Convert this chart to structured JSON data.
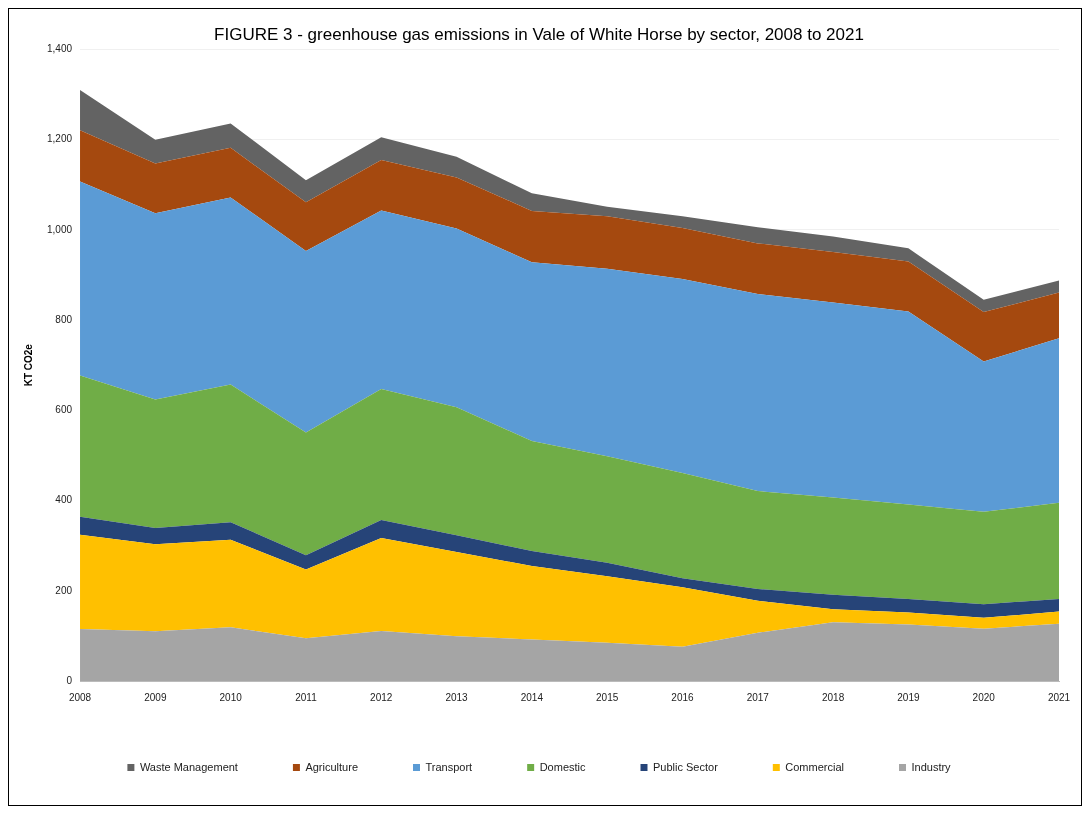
{
  "chart_data": {
    "type": "area",
    "title": "FIGURE 3 - greenhouse gas emissions in Vale of White Horse by sector, 2008 to 2021",
    "ylabel": "KT CO2e",
    "categories": [
      "2008",
      "2009",
      "2010",
      "2011",
      "2012",
      "2013",
      "2014",
      "2015",
      "2016",
      "2017",
      "2018",
      "2019",
      "2020",
      "2021"
    ],
    "stacked": true,
    "ylim": [
      0,
      1400
    ],
    "yticks": [
      0,
      200,
      400,
      600,
      800,
      {
        "value": 1000,
        "label": "1,000"
      },
      {
        "value": 1200,
        "label": "1,200"
      },
      {
        "value": 1400,
        "label": "1,400"
      }
    ],
    "grid": "y",
    "legend": "bottom",
    "series": [
      {
        "name": "Industry",
        "color": "#a5a5a5",
        "values": [
          115,
          110,
          119,
          95,
          111,
          99,
          92,
          85,
          76,
          107,
          130,
          125,
          116,
          127
        ]
      },
      {
        "name": "Commercial",
        "color": "#ffc000",
        "values": [
          209,
          193,
          194,
          152,
          206,
          187,
          163,
          147,
          132,
          71,
          29,
          27,
          24,
          27
        ]
      },
      {
        "name": "Public Sector",
        "color": "#264478",
        "values": [
          40,
          36,
          39,
          32,
          40,
          37,
          33,
          30,
          20,
          26,
          32,
          30,
          30,
          28
        ]
      },
      {
        "name": "Domestic",
        "color": "#70ad47",
        "values": [
          313,
          285,
          305,
          272,
          290,
          284,
          244,
          236,
          233,
          217,
          216,
          209,
          205,
          213
        ]
      },
      {
        "name": "Transport",
        "color": "#5b9bd5",
        "values": [
          430,
          413,
          415,
          402,
          396,
          396,
          396,
          416,
          430,
          437,
          432,
          428,
          333,
          365
        ]
      },
      {
        "name": "Agriculture",
        "color": "#a5490f",
        "values": [
          114,
          110,
          110,
          108,
          112,
          113,
          114,
          116,
          113,
          112,
          112,
          111,
          110,
          101
        ]
      },
      {
        "name": "Waste Management",
        "color": "#636363",
        "values": [
          89,
          53,
          54,
          49,
          50,
          46,
          39,
          21,
          26,
          36,
          34,
          29,
          27,
          27
        ]
      }
    ]
  }
}
